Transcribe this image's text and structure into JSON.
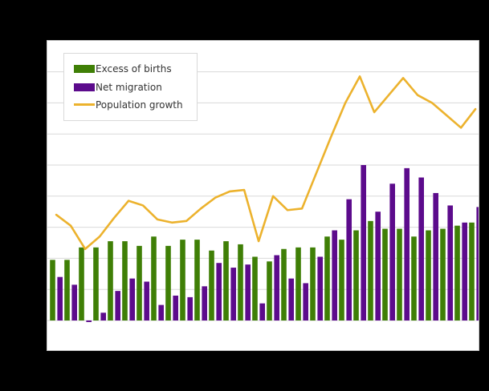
{
  "window": {
    "background_color": "#000000"
  },
  "chart": {
    "panel_background": "#ffffff",
    "panel_border_color": "#c9c9c9",
    "gridline_color": "#d9d9d9"
  },
  "legend": {
    "items": [
      {
        "label": "Excess of births",
        "marker": "square",
        "color": "#3f7f06"
      },
      {
        "label": "Net migration",
        "marker": "square",
        "color": "#5c0b8c"
      },
      {
        "label": "Population growth",
        "marker": "line",
        "color": "#ecb22d"
      }
    ]
  },
  "chart_data": {
    "type": "combo-bar-line",
    "title": "",
    "xlabel": "",
    "ylabel": "",
    "n_points": 30,
    "x_tick_labels_visible": false,
    "y_tick_labels_visible": false,
    "grid": "horizontal",
    "gridline_interval": 1,
    "ylim": [
      -1,
      9
    ],
    "y_unit": "gridline units (no numeric axis labels visible in image)",
    "legend_position": "top-left inside plot",
    "series": [
      {
        "name": "Excess of births",
        "type": "bar",
        "color": "#3f7f06",
        "values": [
          1.95,
          1.95,
          2.35,
          2.35,
          2.55,
          2.55,
          2.4,
          2.7,
          2.4,
          2.6,
          2.6,
          2.25,
          2.55,
          2.45,
          2.05,
          1.9,
          2.3,
          2.35,
          2.35,
          2.7,
          2.6,
          2.9,
          3.2,
          2.95,
          2.95,
          2.7,
          2.9,
          2.95,
          3.05,
          3.15
        ]
      },
      {
        "name": "Net migration",
        "type": "bar",
        "color": "#5c0b8c",
        "values": [
          1.4,
          1.15,
          -0.05,
          0.25,
          0.95,
          1.35,
          1.25,
          0.5,
          0.8,
          0.75,
          1.1,
          1.85,
          1.7,
          1.8,
          0.55,
          2.1,
          1.35,
          1.2,
          2.05,
          2.9,
          3.9,
          5.0,
          3.5,
          4.4,
          4.9,
          4.6,
          4.1,
          3.7,
          3.15,
          3.65
        ]
      },
      {
        "name": "Population growth",
        "type": "line",
        "color": "#ecb22d",
        "values": [
          3.4,
          3.05,
          2.3,
          2.7,
          3.3,
          3.85,
          3.7,
          3.25,
          3.15,
          3.2,
          3.6,
          3.95,
          4.15,
          4.2,
          2.55,
          4.0,
          3.55,
          3.6,
          4.75,
          5.9,
          7.0,
          7.85,
          6.7,
          7.25,
          7.8,
          7.25,
          7.0,
          6.6,
          6.2,
          6.8
        ]
      }
    ]
  }
}
